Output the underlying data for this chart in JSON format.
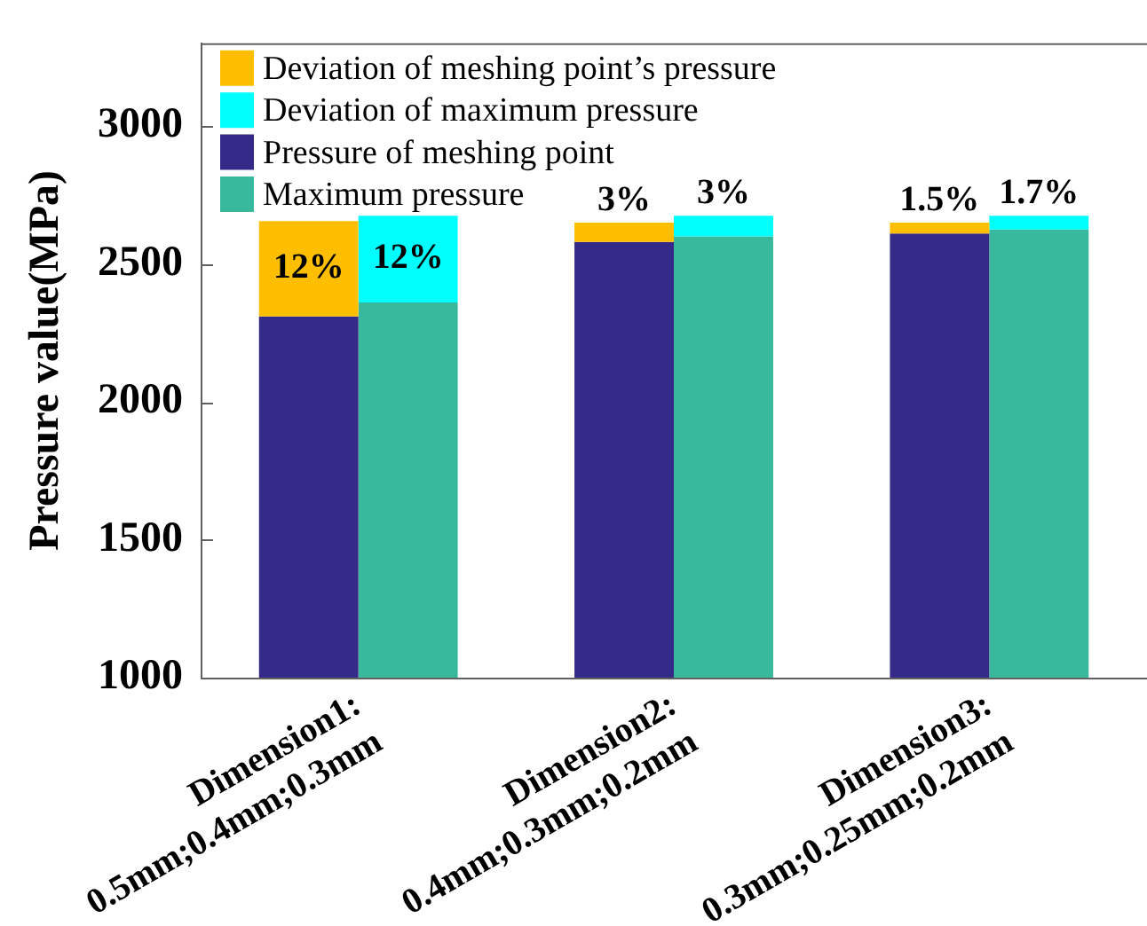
{
  "chart_data": {
    "type": "bar",
    "categories": [
      "Dimension1:\n0.5mm;0.4mm;0.3mm",
      "Dimension2:\n0.4mm;0.3mm;0.2mm",
      "Dimension3:\n0.3mm;0.25mm;0.2mm"
    ],
    "series": [
      {
        "name": "Deviation of meshing point’s pressure",
        "color": "#ffbf00",
        "base": [
          2310,
          2580,
          2610
        ],
        "values": [
          345,
          70,
          40
        ]
      },
      {
        "name": "Deviation of maximum pressure",
        "color": "#00ffff",
        "base": [
          2360,
          2600,
          2625
        ],
        "values": [
          315,
          75,
          50
        ]
      },
      {
        "name": "Pressure of meshing point",
        "color": "#352a87",
        "values": [
          2310,
          2580,
          2610
        ]
      },
      {
        "name": "Maximum pressure",
        "color": "#38b89c",
        "values": [
          2360,
          2600,
          2625
        ]
      }
    ],
    "annotations": [
      {
        "text": "12%",
        "x": "Dimension1:\n0.5mm;0.4mm;0.3mm",
        "y": 2655
      },
      {
        "text": "12%",
        "x": "Dimension1:\n0.5mm;0.4mm;0.3mm",
        "y": 2675
      },
      {
        "text": "3%",
        "x": "Dimension2:\n0.4mm;0.3mm;0.2mm",
        "y": 2650
      },
      {
        "text": "3%",
        "x": "Dimension2:\n0.4mm;0.3mm;0.2mm",
        "y": 2675
      },
      {
        "text": "1.5%",
        "x": "Dimension3:\n0.3mm;0.25mm;0.2mm",
        "y": 2650
      },
      {
        "text": "1.7%",
        "x": "Dimension3:\n0.3mm;0.25mm;0.2mm",
        "y": 2675
      }
    ],
    "ylabel": "Pressure value(MPa)",
    "ylim": [
      1000,
      3300
    ],
    "yticks": [
      1000,
      1500,
      2000,
      2500,
      3000
    ],
    "legend": "top left"
  }
}
